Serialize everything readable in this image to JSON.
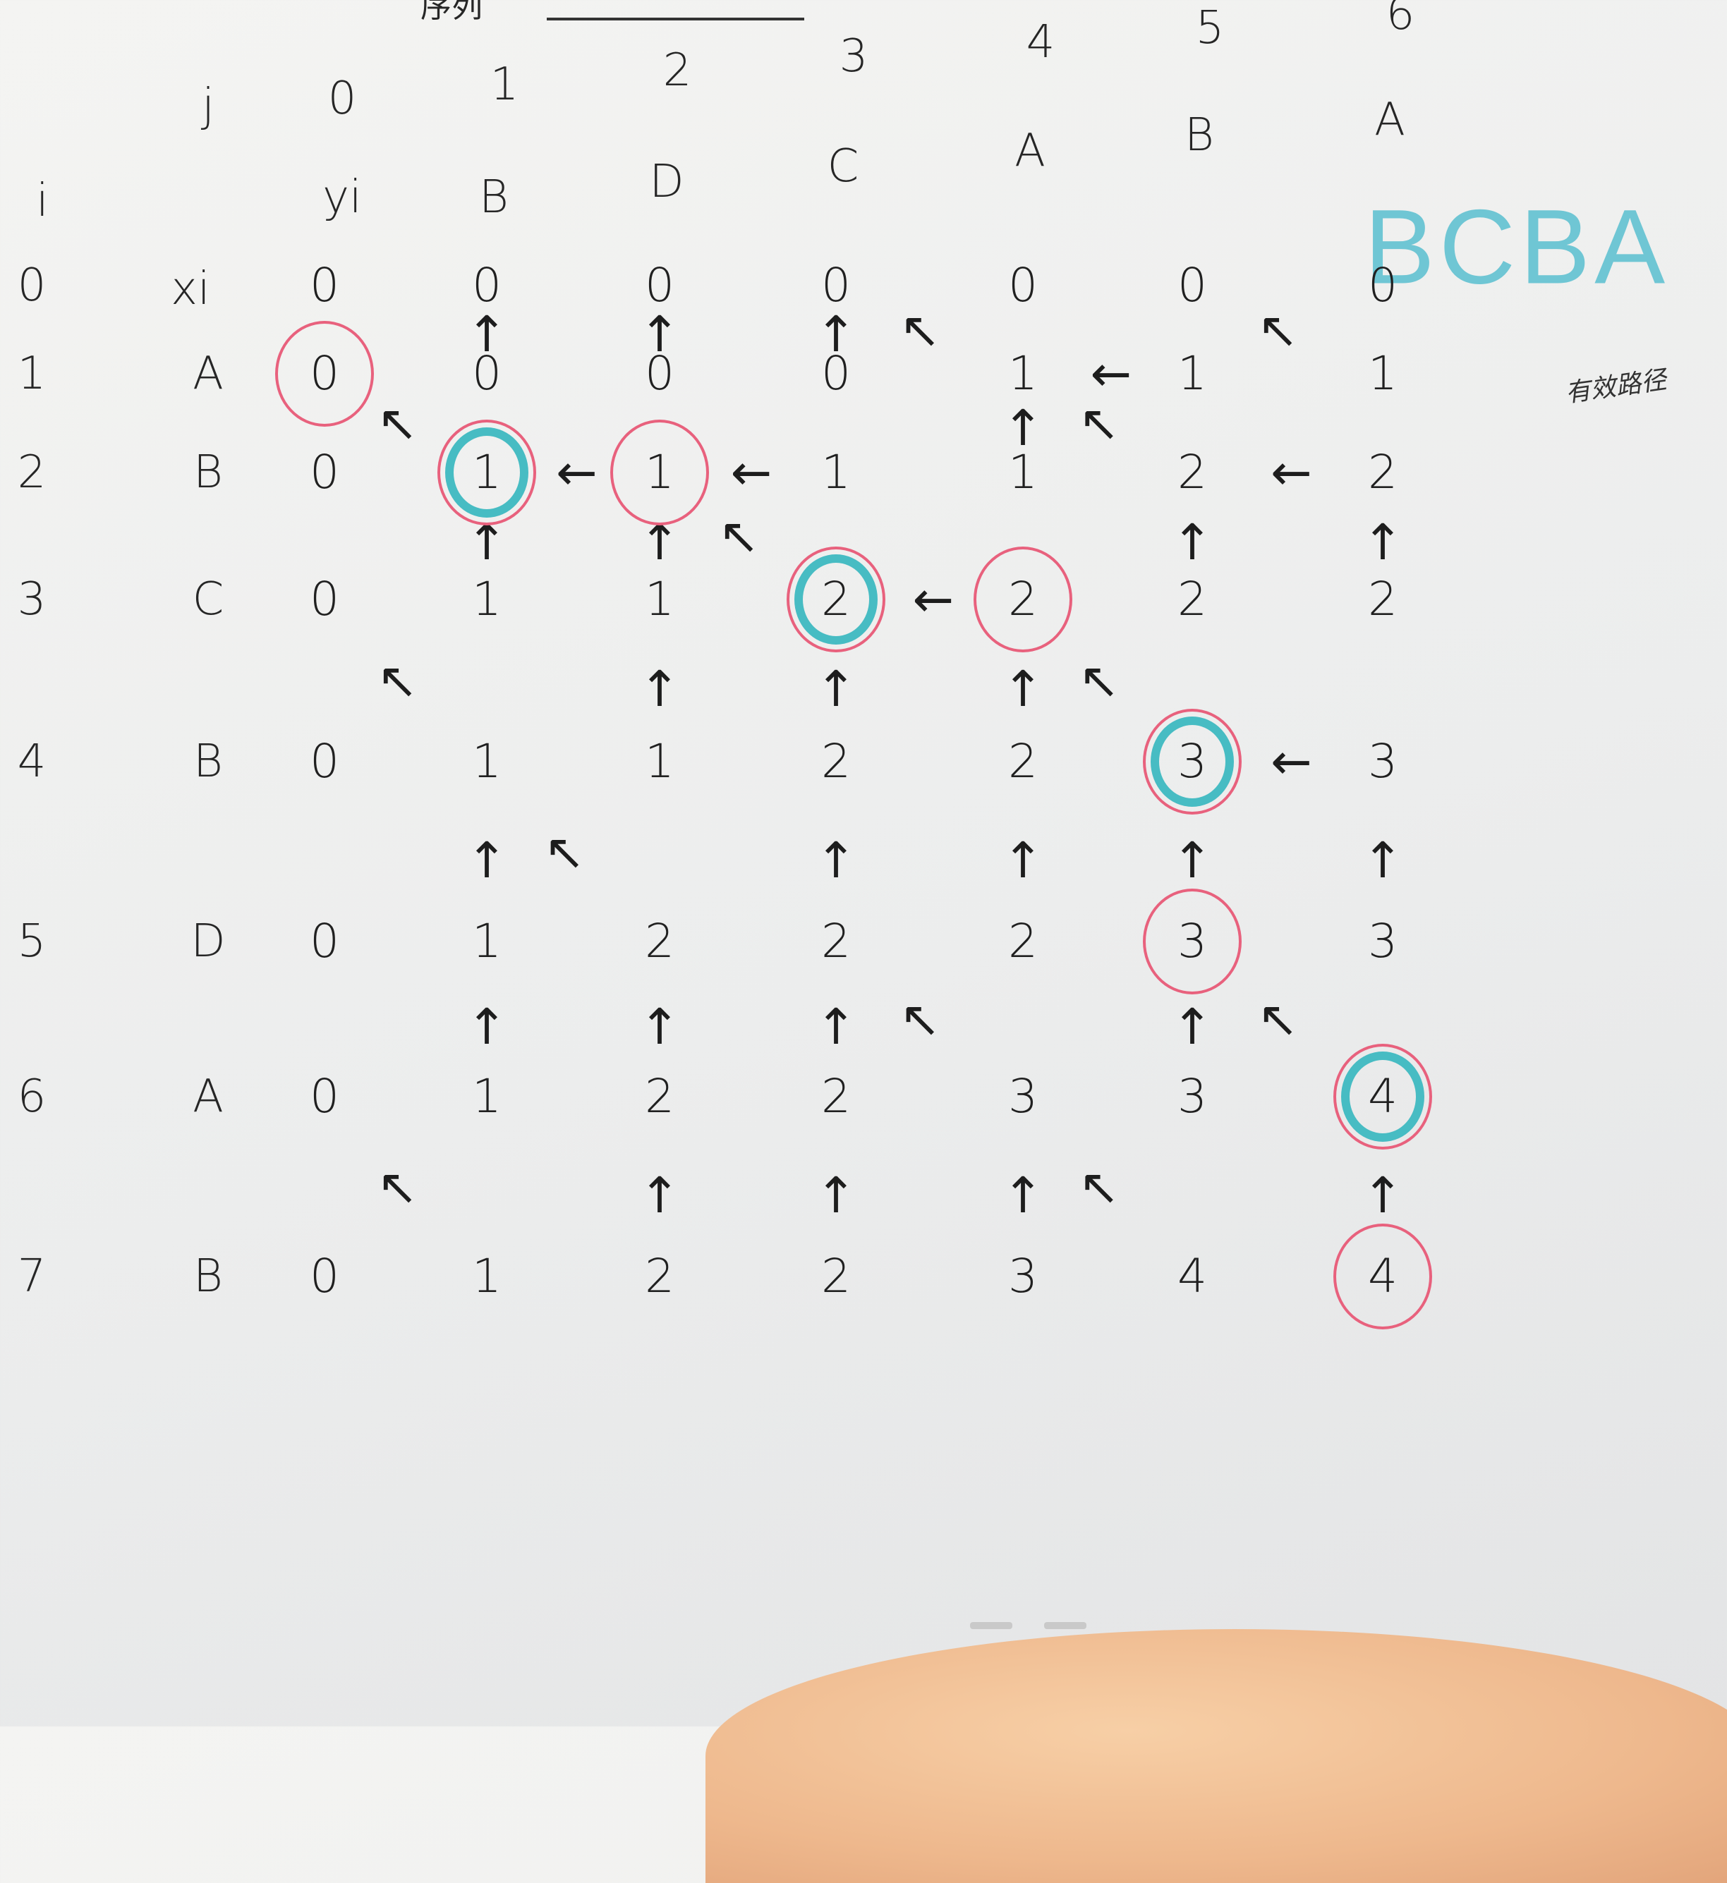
{
  "header": {
    "j_label": "j",
    "i_label": "i",
    "yi_label": "yi",
    "xi_label": "xi",
    "col_indices": [
      "0",
      "1",
      "2",
      "3",
      "4",
      "5",
      "6"
    ],
    "y_sequence": [
      "B",
      "D",
      "C",
      "A",
      "B",
      "A"
    ],
    "row_indices": [
      "0",
      "1",
      "2",
      "3",
      "4",
      "5",
      "6",
      "7"
    ],
    "x_sequence": [
      "A",
      "B",
      "C",
      "B",
      "D",
      "A",
      "B"
    ],
    "top_fragment": "序列"
  },
  "grid": [
    [
      "0",
      "0",
      "0",
      "0",
      "0",
      "0",
      "0"
    ],
    [
      "0",
      "0",
      "0",
      "0",
      "1",
      "1",
      "1"
    ],
    [
      "0",
      "1",
      "1",
      "1",
      "1",
      "2",
      "2"
    ],
    [
      "0",
      "1",
      "1",
      "2",
      "2",
      "2",
      "2"
    ],
    [
      "0",
      "1",
      "1",
      "2",
      "2",
      "3",
      "3"
    ],
    [
      "0",
      "1",
      "2",
      "2",
      "2",
      "3",
      "3"
    ],
    [
      "0",
      "1",
      "2",
      "2",
      "3",
      "3",
      "4"
    ],
    [
      "0",
      "1",
      "2",
      "2",
      "3",
      "4",
      "4"
    ]
  ],
  "arrows": [
    {
      "r": 1,
      "c": 1,
      "s": "↑"
    },
    {
      "r": 1,
      "c": 2,
      "s": "↑"
    },
    {
      "r": 1,
      "c": 3,
      "s": "↑"
    },
    {
      "r": 1,
      "c": 4,
      "s": "↖"
    },
    {
      "r": 1,
      "c": 5,
      "s": "←"
    },
    {
      "r": 1,
      "c": 6,
      "s": "↖"
    },
    {
      "r": 2,
      "c": 1,
      "s": "↖"
    },
    {
      "r": 2,
      "c": 2,
      "s": "←"
    },
    {
      "r": 2,
      "c": 3,
      "s": "←"
    },
    {
      "r": 2,
      "c": 4,
      "s": "↑"
    },
    {
      "r": 2,
      "c": 5,
      "s": "↖"
    },
    {
      "r": 2,
      "c": 6,
      "s": "←"
    },
    {
      "r": 3,
      "c": 1,
      "s": "↑"
    },
    {
      "r": 3,
      "c": 2,
      "s": "↑"
    },
    {
      "r": 3,
      "c": 3,
      "s": "↖"
    },
    {
      "r": 3,
      "c": 4,
      "s": "←"
    },
    {
      "r": 3,
      "c": 5,
      "s": "↑"
    },
    {
      "r": 3,
      "c": 6,
      "s": "↑"
    },
    {
      "r": 4,
      "c": 1,
      "s": "↖"
    },
    {
      "r": 4,
      "c": 2,
      "s": "↑"
    },
    {
      "r": 4,
      "c": 3,
      "s": "↑"
    },
    {
      "r": 4,
      "c": 4,
      "s": "↑"
    },
    {
      "r": 4,
      "c": 5,
      "s": "↖"
    },
    {
      "r": 4,
      "c": 6,
      "s": "←"
    },
    {
      "r": 5,
      "c": 1,
      "s": "↑"
    },
    {
      "r": 5,
      "c": 2,
      "s": "↖"
    },
    {
      "r": 5,
      "c": 3,
      "s": "↑"
    },
    {
      "r": 5,
      "c": 4,
      "s": "↑"
    },
    {
      "r": 5,
      "c": 5,
      "s": "↑"
    },
    {
      "r": 5,
      "c": 6,
      "s": "↑"
    },
    {
      "r": 6,
      "c": 1,
      "s": "↑"
    },
    {
      "r": 6,
      "c": 2,
      "s": "↑"
    },
    {
      "r": 6,
      "c": 3,
      "s": "↑"
    },
    {
      "r": 6,
      "c": 4,
      "s": "↖"
    },
    {
      "r": 6,
      "c": 5,
      "s": "↑"
    },
    {
      "r": 6,
      "c": 6,
      "s": "↖"
    },
    {
      "r": 7,
      "c": 1,
      "s": "↖"
    },
    {
      "r": 7,
      "c": 2,
      "s": "↑"
    },
    {
      "r": 7,
      "c": 3,
      "s": "↑"
    },
    {
      "r": 7,
      "c": 4,
      "s": "↑"
    },
    {
      "r": 7,
      "c": 5,
      "s": "↖"
    },
    {
      "r": 7,
      "c": 6,
      "s": "↑"
    }
  ],
  "red_circled": [
    [
      1,
      0
    ],
    [
      2,
      1
    ],
    [
      2,
      2
    ],
    [
      3,
      3
    ],
    [
      3,
      4
    ],
    [
      4,
      5
    ],
    [
      5,
      5
    ],
    [
      6,
      6
    ],
    [
      7,
      6
    ]
  ],
  "teal_circled": [
    [
      2,
      1
    ],
    [
      3,
      3
    ],
    [
      4,
      5
    ],
    [
      6,
      6
    ]
  ],
  "result": "BCBA",
  "margin_note": "有效路径",
  "colors": {
    "red_ink": "#e8617d",
    "teal_ink": "#47bcc3",
    "result_ink": "#6fc6d4",
    "pencil": "#1f1f1f"
  }
}
